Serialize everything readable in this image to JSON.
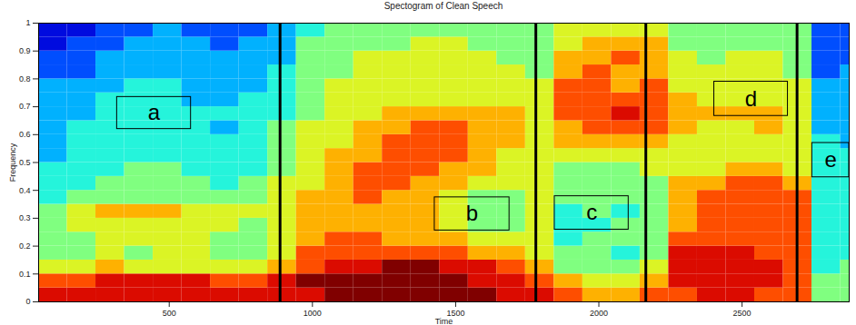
{
  "chart_data": {
    "type": "heatmap",
    "title": "Spectogram of Clean Speech",
    "x_label": "Time",
    "y_label": "Frequency",
    "xlim": [
      44,
      2874
    ],
    "ylim": [
      0,
      1
    ],
    "xticks": [
      500,
      1000,
      1500,
      2000,
      2500
    ],
    "yticks": [
      0,
      0.1,
      0.2,
      0.3,
      0.4,
      0.5,
      0.6,
      0.7,
      0.8,
      0.9,
      1
    ],
    "time_edges": [
      44,
      144,
      244,
      344,
      444,
      544,
      644,
      744,
      844,
      944,
      1044,
      1144,
      1244,
      1344,
      1444,
      1544,
      1644,
      1744,
      1844,
      1944,
      2044,
      2144,
      2244,
      2344,
      2444,
      2544,
      2644,
      2744,
      2844,
      2874
    ],
    "frequency_edges": [
      0,
      0.05,
      0.1,
      0.15,
      0.2,
      0.25,
      0.3,
      0.35,
      0.4,
      0.45,
      0.5,
      0.55,
      0.6,
      0.65,
      0.7,
      0.75,
      0.8,
      0.85,
      0.9,
      0.95,
      1
    ],
    "color_range": [
      0,
      10
    ],
    "cells": [
      [
        9,
        9,
        9,
        9,
        9,
        9,
        9,
        9,
        9,
        9,
        10,
        10,
        10,
        10,
        10,
        10,
        9,
        9,
        8,
        7,
        7,
        8,
        8,
        9,
        9,
        8,
        8,
        5,
        5
      ],
      [
        8,
        8,
        9,
        9,
        9,
        9,
        8,
        8,
        9,
        10,
        10,
        10,
        10,
        10,
        10,
        9,
        9,
        8,
        7,
        6,
        6,
        7,
        9,
        9,
        9,
        9,
        8,
        5,
        5
      ],
      [
        6,
        6,
        7,
        6,
        6,
        6,
        6,
        6,
        7,
        8,
        9,
        9,
        10,
        10,
        9,
        9,
        8,
        7,
        5,
        5,
        5,
        6,
        9,
        9,
        9,
        9,
        8,
        4,
        5
      ],
      [
        5,
        5,
        6,
        5,
        6,
        6,
        5,
        5,
        6,
        8,
        8,
        8,
        8,
        8,
        8,
        7,
        7,
        6,
        5,
        5,
        4,
        5,
        9,
        9,
        9,
        8,
        8,
        4,
        4
      ],
      [
        5,
        5,
        6,
        6,
        6,
        6,
        5,
        5,
        6,
        7,
        8,
        8,
        7,
        7,
        7,
        6,
        6,
        6,
        4,
        5,
        5,
        5,
        8,
        8,
        8,
        8,
        8,
        4,
        4
      ],
      [
        5,
        6,
        6,
        6,
        6,
        6,
        6,
        5,
        6,
        7,
        7,
        7,
        7,
        7,
        6,
        5,
        5,
        6,
        4,
        4,
        5,
        5,
        7,
        8,
        8,
        8,
        8,
        4,
        4
      ],
      [
        5,
        6,
        7,
        7,
        7,
        6,
        6,
        6,
        6,
        7,
        7,
        7,
        7,
        7,
        6,
        5,
        5,
        6,
        4,
        5,
        4,
        5,
        7,
        8,
        8,
        8,
        8,
        4,
        4
      ],
      [
        4,
        5,
        5,
        5,
        5,
        5,
        5,
        5,
        6,
        7,
        7,
        8,
        7,
        7,
        6,
        5,
        5,
        6,
        5,
        5,
        5,
        5,
        7,
        8,
        8,
        8,
        8,
        4,
        4
      ],
      [
        4,
        4,
        5,
        5,
        5,
        5,
        4,
        5,
        6,
        6,
        7,
        8,
        8,
        7,
        7,
        6,
        6,
        6,
        5,
        5,
        5,
        5,
        7,
        7,
        8,
        8,
        7,
        4,
        4
      ],
      [
        4,
        4,
        4,
        5,
        5,
        4,
        4,
        4,
        5,
        6,
        7,
        8,
        8,
        8,
        7,
        7,
        6,
        6,
        5,
        5,
        5,
        6,
        6,
        6,
        7,
        7,
        6,
        4,
        4
      ],
      [
        3,
        4,
        4,
        4,
        4,
        4,
        4,
        4,
        5,
        6,
        7,
        7,
        8,
        8,
        8,
        7,
        6,
        6,
        6,
        6,
        6,
        6,
        6,
        6,
        6,
        6,
        6,
        4,
        4
      ],
      [
        3,
        4,
        4,
        4,
        4,
        4,
        4,
        4,
        5,
        6,
        6,
        7,
        8,
        8,
        8,
        7,
        7,
        6,
        7,
        7,
        7,
        7,
        6,
        6,
        6,
        6,
        6,
        4,
        3
      ],
      [
        3,
        4,
        4,
        4,
        4,
        4,
        3,
        4,
        5,
        6,
        6,
        7,
        7,
        8,
        8,
        7,
        7,
        6,
        7,
        8,
        8,
        8,
        7,
        6,
        6,
        7,
        6,
        3,
        3
      ],
      [
        3,
        3,
        4,
        4,
        4,
        4,
        4,
        4,
        4,
        5,
        6,
        6,
        7,
        7,
        7,
        7,
        7,
        6,
        8,
        8,
        9,
        8,
        7,
        7,
        7,
        7,
        6,
        3,
        3
      ],
      [
        3,
        3,
        4,
        4,
        4,
        3,
        3,
        4,
        4,
        5,
        6,
        6,
        6,
        6,
        6,
        6,
        6,
        6,
        8,
        8,
        8,
        8,
        7,
        6,
        6,
        6,
        6,
        3,
        3
      ],
      [
        3,
        3,
        3,
        4,
        4,
        3,
        3,
        3,
        4,
        5,
        6,
        6,
        6,
        6,
        6,
        6,
        6,
        6,
        8,
        8,
        7,
        8,
        6,
        6,
        6,
        6,
        6,
        3,
        3
      ],
      [
        2,
        2,
        3,
        3,
        3,
        3,
        3,
        3,
        4,
        5,
        5,
        6,
        6,
        6,
        6,
        6,
        6,
        5,
        7,
        8,
        7,
        7,
        6,
        6,
        6,
        6,
        5,
        2,
        3
      ],
      [
        2,
        2,
        3,
        3,
        3,
        3,
        3,
        3,
        3,
        5,
        5,
        6,
        6,
        6,
        6,
        6,
        5,
        5,
        7,
        7,
        8,
        7,
        6,
        5,
        6,
        6,
        5,
        2,
        2
      ],
      [
        1,
        2,
        2,
        3,
        3,
        3,
        2,
        3,
        3,
        5,
        5,
        5,
        5,
        6,
        6,
        5,
        5,
        5,
        6,
        7,
        7,
        7,
        5,
        5,
        5,
        5,
        5,
        2,
        2
      ],
      [
        1,
        1,
        2,
        2,
        3,
        2,
        2,
        2,
        3,
        4,
        5,
        5,
        5,
        5,
        5,
        5,
        5,
        5,
        6,
        6,
        6,
        6,
        5,
        5,
        5,
        5,
        5,
        2,
        2
      ]
    ],
    "segment_boundaries": [
      887,
      1780,
      2164,
      2692
    ],
    "annotations": [
      {
        "label": "a",
        "x1": 318,
        "x2": 576,
        "y1": 0.62,
        "y2": 0.735
      },
      {
        "label": "b",
        "x1": 1427,
        "x2": 1688,
        "y1": 0.256,
        "y2": 0.375
      },
      {
        "label": "c",
        "x1": 1846,
        "x2": 2104,
        "y1": 0.259,
        "y2": 0.379
      },
      {
        "label": "d",
        "x1": 2403,
        "x2": 2660,
        "y1": 0.667,
        "y2": 0.79
      },
      {
        "label": "e",
        "x1": 2745,
        "x2": 2874,
        "y1": 0.447,
        "y2": 0.57
      }
    ]
  }
}
